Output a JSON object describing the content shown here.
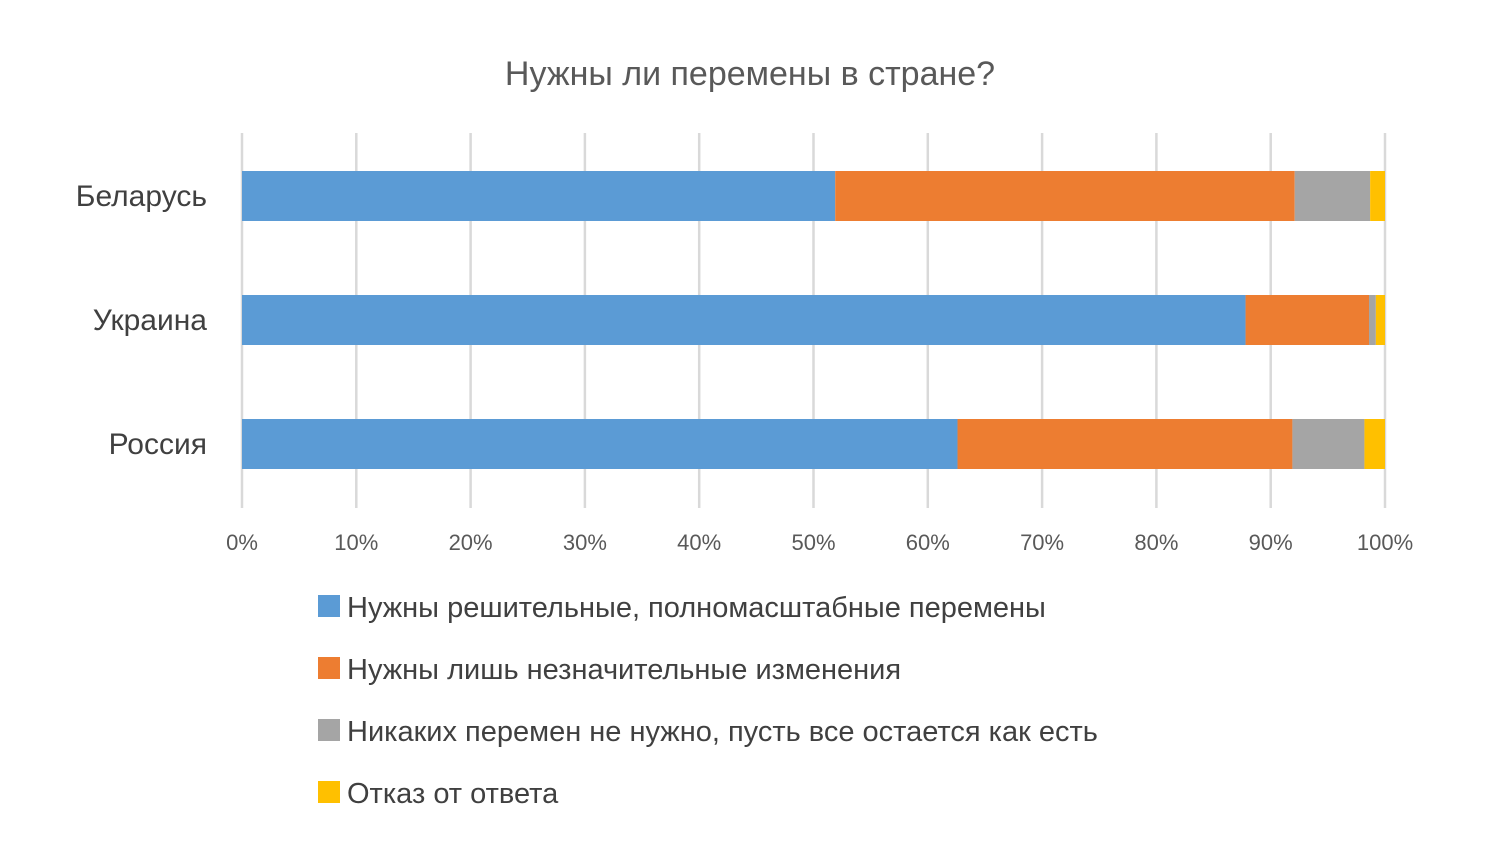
{
  "chart_data": {
    "type": "bar",
    "orientation": "horizontal",
    "stacked": "percent",
    "title": "Нужны ли перемены в стране?",
    "categories": [
      "Беларусь",
      "Украина",
      "Россия"
    ],
    "series": [
      {
        "name": "Нужны решительные, полномасштабные перемены",
        "color": "#5b9bd5",
        "values": [
          51.9,
          87.8,
          62.6
        ]
      },
      {
        "name": "Нужны лишь незначительные изменения",
        "color": "#ed7d31",
        "values": [
          40.2,
          10.8,
          29.3
        ]
      },
      {
        "name": "Никаких перемен не нужно, пусть все остается как есть",
        "color": "#a5a5a5",
        "values": [
          6.6,
          0.6,
          6.3
        ]
      },
      {
        "name": "Отказ от ответа",
        "color": "#ffc000",
        "values": [
          1.3,
          0.8,
          1.8
        ]
      }
    ],
    "xlim": [
      0,
      100
    ],
    "x_ticks": [
      "0%",
      "10%",
      "20%",
      "30%",
      "40%",
      "50%",
      "60%",
      "70%",
      "80%",
      "90%",
      "100%"
    ],
    "grid": true,
    "legend_position": "bottom"
  }
}
